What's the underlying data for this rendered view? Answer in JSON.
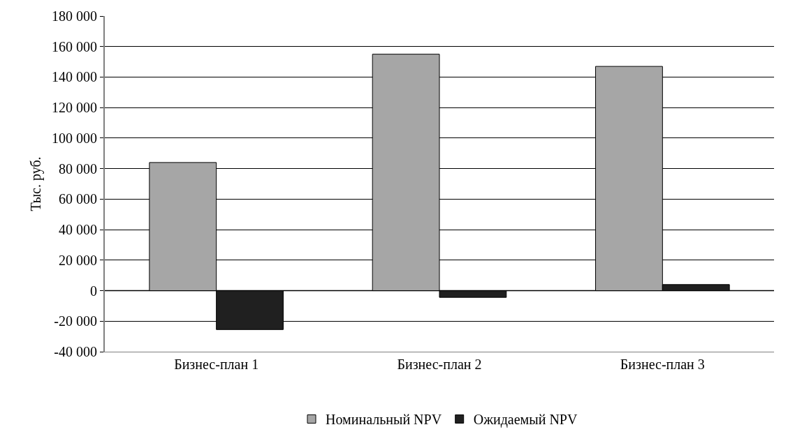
{
  "chart_data": {
    "type": "bar",
    "ylabel": "Тыс. руб.",
    "categories": [
      "Бизнес-план 1",
      "Бизнес-план 2",
      "Бизнес-план 3"
    ],
    "series": [
      {
        "name": "Номинальный NPV",
        "color": "#a6a6a6",
        "values": [
          84000,
          155000,
          147000
        ]
      },
      {
        "name": "Ожидаемый NPV",
        "color": "#202020",
        "values": [
          -25500,
          -4400,
          4000
        ]
      }
    ],
    "ylim": [
      -40000,
      180000
    ],
    "yticks": [
      {
        "value": -40000,
        "label": "-40 000"
      },
      {
        "value": -20000,
        "label": "-20 000"
      },
      0,
      {
        "value": 20000,
        "label": "20 000"
      },
      {
        "value": 40000,
        "label": "40 000"
      },
      {
        "value": 60000,
        "label": "60 000"
      },
      {
        "value": 80000,
        "label": "80 000"
      },
      {
        "value": 100000,
        "label": "100 000"
      },
      {
        "value": 120000,
        "label": "120 000"
      },
      {
        "value": 140000,
        "label": "140 000"
      },
      {
        "value": 160000,
        "label": "160 000"
      },
      {
        "value": 180000,
        "label": "180 000"
      }
    ],
    "grid": "y",
    "legend": "bottom"
  }
}
